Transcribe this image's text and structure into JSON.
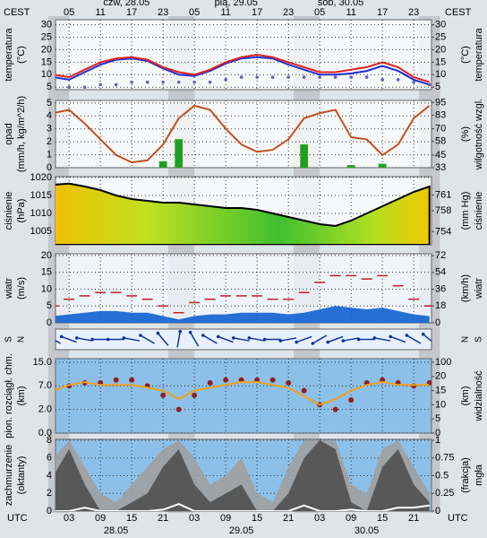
{
  "chart_data": [
    {
      "type": "line",
      "ylabel": [
        "temperatura",
        "(°C)"
      ],
      "y2label": [
        "(°C)",
        "temperatura"
      ],
      "x2label": "CEST",
      "x2ticks": [
        {
          "value": 3,
          "label": "05"
        },
        {
          "value": 9,
          "label": "11"
        },
        {
          "value": 15,
          "label": "17"
        },
        {
          "value": 21,
          "label": "23"
        },
        {
          "value": 27,
          "label": "05"
        },
        {
          "value": 33,
          "label": "11"
        },
        {
          "value": 39,
          "label": "17"
        },
        {
          "value": 45,
          "label": "23"
        },
        {
          "value": 51,
          "label": "05"
        },
        {
          "value": 57,
          "label": "11"
        },
        {
          "value": 63,
          "label": "17"
        },
        {
          "value": 69,
          "label": "23"
        }
      ],
      "x2_day_ticks": [
        {
          "value": 14,
          "label": "czw, 28.05"
        },
        {
          "value": 35,
          "label": "pią, 29.05"
        },
        {
          "value": 55,
          "label": "sob, 30.05"
        }
      ],
      "xlim": [
        0.4,
        72.4
      ],
      "x": [
        0,
        3,
        6,
        9,
        12,
        15,
        18,
        21,
        24,
        27,
        30,
        33,
        36,
        39,
        42,
        45,
        48,
        51,
        54,
        57,
        60,
        63,
        66,
        69,
        72
      ],
      "ylim": [
        4,
        32
      ],
      "yticks": [
        5,
        10,
        15,
        20,
        25,
        30
      ],
      "y2lim": [
        4,
        32
      ],
      "y2ticks": [
        5,
        10,
        15,
        20,
        25,
        30
      ],
      "grid": true,
      "series": [
        {
          "kind": "line",
          "color": "#2030d0",
          "values": [
            9,
            8,
            11,
            14,
            16,
            16.5,
            15.5,
            12.5,
            10,
            9.5,
            11.5,
            14.5,
            16.5,
            17,
            16.5,
            14,
            12,
            10,
            10,
            10.5,
            11.5,
            13.5,
            11.5,
            8,
            6
          ]
        },
        {
          "kind": "line",
          "color": "#e02020",
          "values": [
            10,
            9,
            12,
            15,
            16.5,
            17,
            16,
            13,
            11,
            10,
            12,
            15,
            17,
            18,
            17,
            15,
            13,
            11,
            11,
            12,
            13,
            15,
            13,
            9,
            7
          ]
        },
        {
          "kind": "dots",
          "color": "#6060c0",
          "values": [
            5,
            5,
            5,
            6,
            6,
            7,
            7,
            7,
            7,
            7,
            7,
            8,
            9,
            9,
            9,
            9,
            9,
            9,
            9,
            9,
            9,
            8,
            8,
            7,
            6
          ]
        }
      ]
    },
    {
      "type": "bar",
      "ylabel": [
        "opad",
        "(mm/h, kg/m^2/h)"
      ],
      "y2label": [
        "(%)",
        "wilgotność wzgl."
      ],
      "xlim": [
        0.4,
        72.4
      ],
      "x": [
        0,
        3,
        6,
        9,
        12,
        15,
        18,
        21,
        24,
        27,
        30,
        33,
        36,
        39,
        42,
        45,
        48,
        51,
        54,
        57,
        60,
        63,
        66,
        69,
        72
      ],
      "ylim": [
        0,
        5.2
      ],
      "yticks": [
        0,
        1,
        2,
        3,
        4,
        5
      ],
      "y2lim": [
        33,
        97
      ],
      "y2ticks": [
        33,
        45,
        58,
        70,
        83,
        95
      ],
      "grid": true,
      "series": [
        {
          "kind": "bar",
          "color": "#20a020",
          "values": [
            0,
            0,
            0,
            0,
            0,
            0,
            0,
            0.5,
            2.2,
            0,
            0,
            0,
            0,
            0,
            0,
            0,
            1.8,
            0,
            0,
            0.2,
            0,
            0.3,
            0,
            0,
            0
          ]
        },
        {
          "kind": "line",
          "axis": "y2",
          "color": "#c05020",
          "values": [
            85,
            88,
            75,
            60,
            45,
            38,
            40,
            55,
            80,
            92,
            88,
            70,
            55,
            48,
            50,
            60,
            80,
            85,
            88,
            62,
            60,
            45,
            55,
            80,
            92
          ]
        }
      ]
    },
    {
      "type": "area",
      "ylabel": [
        "ciśnienie",
        "(hPa)"
      ],
      "y2label": [
        "(mm Hg)",
        "ciśnienie"
      ],
      "xlim": [
        0.4,
        72.4
      ],
      "x": [
        0,
        3,
        6,
        9,
        12,
        15,
        18,
        21,
        24,
        27,
        30,
        33,
        36,
        39,
        42,
        45,
        48,
        51,
        54,
        57,
        60,
        63,
        66,
        69,
        72
      ],
      "ylim": [
        1001.25,
        1020.25
      ],
      "yticks": [
        1005,
        1010,
        1015,
        1020
      ],
      "y2lim": [
        751.5,
        764.5
      ],
      "y2ticks": [
        754,
        758,
        761
      ],
      "grid": true,
      "series": [
        {
          "kind": "area",
          "color": "#000000",
          "values": [
            1018,
            1018.3,
            1017.5,
            1016.5,
            1015,
            1014,
            1013.5,
            1013,
            1013,
            1012.5,
            1012,
            1011.5,
            1011.5,
            1011,
            1010,
            1009,
            1008,
            1007,
            1006.5,
            1008,
            1010,
            1012,
            1014,
            1016,
            1017.5
          ]
        }
      ]
    },
    {
      "type": "area",
      "ylabel": [
        "wiatr",
        "(m/s)"
      ],
      "y2label": [
        "(km/h)",
        "wiatr"
      ],
      "xlim": [
        0.4,
        72.4
      ],
      "x": [
        0,
        3,
        6,
        9,
        12,
        15,
        18,
        21,
        24,
        27,
        30,
        33,
        36,
        39,
        42,
        45,
        48,
        51,
        54,
        57,
        60,
        63,
        66,
        69,
        72
      ],
      "ylim": [
        0,
        20.5
      ],
      "yticks": [
        0,
        5,
        10,
        15,
        20
      ],
      "y2lim": [
        0,
        74
      ],
      "y2ticks": [
        0,
        18,
        36,
        54,
        72
      ],
      "grid": true,
      "series": [
        {
          "kind": "area",
          "color": "#1060d0",
          "values": [
            2,
            2.5,
            3,
            3.5,
            3.5,
            3,
            3,
            2,
            1,
            2,
            2.5,
            2.5,
            3,
            3,
            3,
            2.5,
            3,
            4,
            5,
            4.5,
            4,
            4.5,
            3.5,
            2.5,
            2
          ]
        },
        {
          "kind": "dash",
          "color": "#c02020",
          "values": [
            5,
            7,
            8,
            9,
            9,
            8,
            7,
            5,
            3,
            6,
            7,
            8,
            8,
            8,
            7,
            7,
            9,
            12,
            14,
            14,
            13,
            14,
            11,
            7,
            5
          ]
        }
      ]
    },
    {
      "type": "vector",
      "ylabel": [
        "S",
        "N"
      ],
      "y2label": [
        "N",
        "S"
      ],
      "xlim": [
        0.4,
        72.4
      ],
      "x": [
        0,
        3,
        6,
        9,
        12,
        15,
        18,
        21,
        24,
        27,
        30,
        33,
        36,
        39,
        42,
        45,
        48,
        51,
        54,
        57,
        60,
        63,
        66,
        69,
        72
      ],
      "series": [
        {
          "kind": "arrow",
          "color": "#1030a0",
          "values": [
            300,
            290,
            280,
            270,
            270,
            280,
            300,
            320,
            10,
            330,
            300,
            290,
            280,
            280,
            270,
            260,
            250,
            240,
            250,
            260,
            270,
            280,
            290,
            300,
            310
          ]
        }
      ]
    },
    {
      "type": "scatter",
      "ylabel": [
        "pion. rozciągł. chm.",
        "(km)"
      ],
      "y2label": [
        "(km)",
        "widzialność"
      ],
      "scale": "piecewise",
      "xlim": [
        0.4,
        72.4
      ],
      "x": [
        0,
        3,
        6,
        9,
        12,
        15,
        18,
        21,
        24,
        27,
        30,
        33,
        36,
        39,
        42,
        45,
        48,
        51,
        54,
        57,
        60,
        63,
        66,
        69,
        72
      ],
      "yticks": [
        {
          "value": 0,
          "label": "0.0"
        },
        {
          "value": 2,
          "label": "2.0"
        },
        {
          "value": 7,
          "label": "7.0"
        },
        {
          "value": 15,
          "label": "15.0"
        }
      ],
      "y2ticks": [
        0,
        5,
        10,
        15,
        20,
        100
      ],
      "grid": true,
      "series": [
        {
          "kind": "dots",
          "color": "#902020",
          "values": [
            7,
            7,
            8,
            8,
            9,
            9,
            7,
            5,
            2,
            5,
            8,
            9,
            9,
            9,
            9,
            8,
            6,
            3,
            2,
            4,
            8,
            9,
            8,
            7,
            8
          ]
        },
        {
          "kind": "line",
          "axis": "y2",
          "color": "#f0a020",
          "values": [
            15,
            17,
            18,
            17,
            17,
            17,
            16,
            15,
            12,
            15,
            16,
            17,
            18,
            18,
            17,
            16,
            13,
            10,
            12,
            15,
            17,
            18,
            17,
            17,
            17
          ]
        }
      ]
    },
    {
      "type": "area",
      "ylabel": [
        "zachmurzenie",
        "(oktanty)"
      ],
      "y2label": [
        "(frakcja)",
        "mgła"
      ],
      "xlabel": "UTC",
      "xticks": [
        {
          "value": 3,
          "label": "03"
        },
        {
          "value": 9,
          "label": "09"
        },
        15,
        21,
        {
          "value": 27,
          "label": "03"
        },
        {
          "value": 33,
          "label": "09"
        },
        {
          "value": 39,
          "label": "15"
        },
        {
          "value": 45,
          "label": "21"
        },
        {
          "value": 51,
          "label": "03"
        },
        {
          "value": 57,
          "label": "09"
        },
        {
          "value": 63,
          "label": "15"
        },
        {
          "value": 69,
          "label": "21"
        }
      ],
      "x_day_ticks": [
        {
          "value": 12,
          "label": "28.05"
        },
        {
          "value": 36,
          "label": "29.05"
        },
        {
          "value": 60,
          "label": "30.05"
        }
      ],
      "xlim": [
        0.4,
        72.4
      ],
      "x": [
        0,
        3,
        6,
        9,
        12,
        15,
        18,
        21,
        24,
        27,
        30,
        33,
        36,
        39,
        42,
        45,
        48,
        51,
        54,
        57,
        60,
        63,
        66,
        69,
        72
      ],
      "ylim": [
        0,
        8.1
      ],
      "yticks": [
        0,
        2,
        4,
        6,
        8
      ],
      "y2lim": [
        0,
        1.013
      ],
      "y2ticks": [
        0,
        0.25,
        0.5,
        0.75,
        1
      ],
      "grid": true,
      "series": [
        {
          "kind": "area",
          "color": "#a0a0a0",
          "values": [
            6,
            8,
            5,
            2,
            1,
            3,
            5,
            7,
            8,
            6,
            3,
            4,
            6,
            2,
            1,
            5,
            8,
            8,
            8,
            3,
            2,
            7,
            8,
            5,
            2
          ]
        },
        {
          "kind": "area",
          "color": "#505050",
          "values": [
            4,
            7,
            3,
            0,
            0,
            1,
            2,
            5,
            7,
            3,
            1,
            2,
            3,
            0,
            0,
            2,
            6,
            8,
            7,
            1,
            0,
            5,
            7,
            3,
            1
          ]
        },
        {
          "kind": "line",
          "axis": "y2",
          "color": "#ffffff",
          "values": [
            0,
            0,
            0.05,
            0,
            0,
            0,
            0,
            0.02,
            0.1,
            0,
            0,
            0,
            0,
            0,
            0,
            0,
            0.08,
            0,
            0,
            0.02,
            0,
            0,
            0.05,
            0.05,
            0.08
          ]
        }
      ]
    }
  ]
}
